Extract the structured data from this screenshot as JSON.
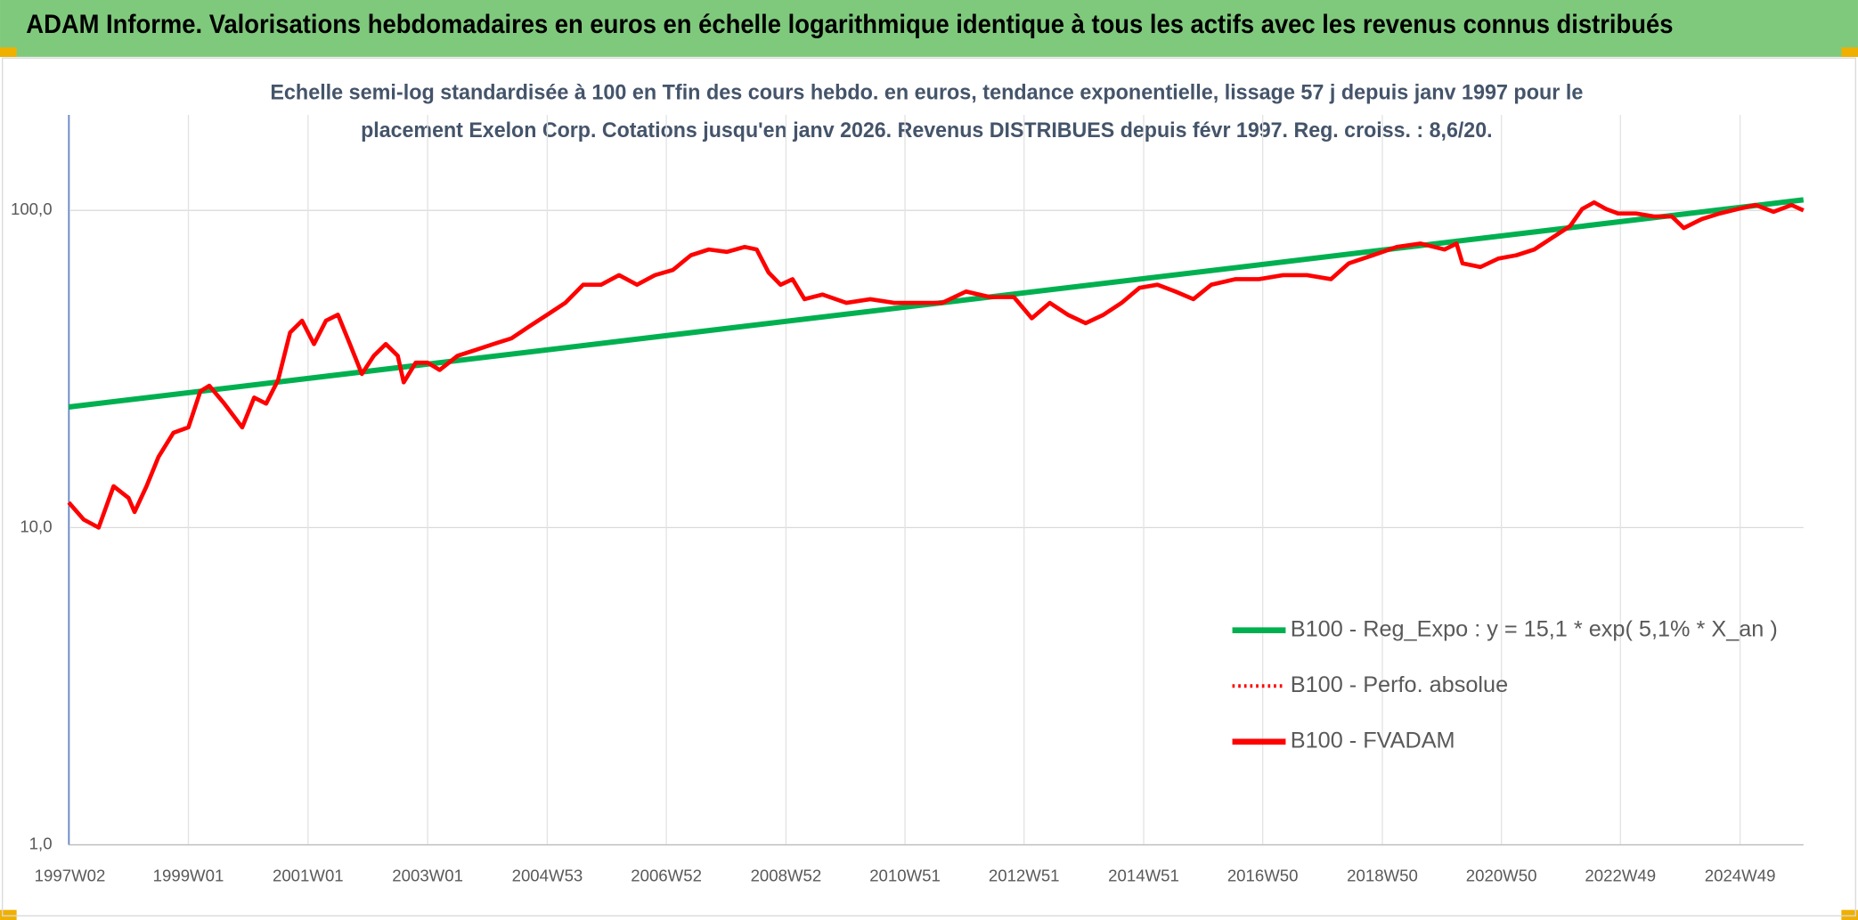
{
  "page_title": "ADAM Informe. Valorisations hebdomadaires en euros en échelle logarithmique identique à tous les actifs avec les revenus connus distribués",
  "chart_data": {
    "type": "line",
    "title": [
      "Echelle semi-log standardisée à 100 en Tfin des cours hebdo. en euros, tendance exponentielle, lissage 57 j depuis janv 1997 pour le",
      "placement Exelon Corp. Cotations jusqu'en janv 2026. Revenus DISTRIBUES depuis févr 1997. Reg. croiss. : 8,6/20."
    ],
    "log_y": true,
    "grid": true,
    "legend": "lower right",
    "xlim": [
      1997.0,
      2026.0
    ],
    "xticks": [
      {
        "value": 1997.02,
        "label": "1997W02"
      },
      {
        "value": 1999.0,
        "label": "1999W01"
      },
      {
        "value": 2001.0,
        "label": "2001W01"
      },
      {
        "value": 2003.0,
        "label": "2003W01"
      },
      {
        "value": 2005.0,
        "label": "2004W53"
      },
      {
        "value": 2006.99,
        "label": "2006W52"
      },
      {
        "value": 2008.99,
        "label": "2008W52"
      },
      {
        "value": 2010.98,
        "label": "2010W51"
      },
      {
        "value": 2012.97,
        "label": "2012W51"
      },
      {
        "value": 2014.97,
        "label": "2014W51"
      },
      {
        "value": 2016.96,
        "label": "2016W50"
      },
      {
        "value": 2018.96,
        "label": "2018W50"
      },
      {
        "value": 2020.95,
        "label": "2020W50"
      },
      {
        "value": 2022.94,
        "label": "2022W49"
      },
      {
        "value": 2024.94,
        "label": "2024W49"
      }
    ],
    "ylim": [
      1,
      200
    ],
    "yticks": [
      {
        "value": 1,
        "label": "1,0"
      },
      {
        "value": 10,
        "label": "10,0"
      },
      {
        "value": 100,
        "label": "100,0"
      }
    ],
    "series": [
      {
        "name": "B100 - Reg_Expo : y = 15,1 * exp( 5,1% *  X_an )",
        "color": "#00b050",
        "style": "solid",
        "x": [
          1997.0,
          2026.0
        ],
        "values": [
          24.0,
          108
        ]
      },
      {
        "name": "B100 - Perfo. absolue",
        "color": "#ff0000",
        "style": "dotted",
        "x": [],
        "values": []
      },
      {
        "name": "B100 - FVADAM",
        "color": "#ff0000",
        "style": "solid",
        "x": [
          1997.0,
          1997.25,
          1997.5,
          1997.75,
          1998.0,
          1998.1,
          1998.3,
          1998.5,
          1998.75,
          1999.0,
          1999.2,
          1999.35,
          1999.6,
          1999.9,
          2000.1,
          2000.3,
          2000.5,
          2000.7,
          2000.9,
          2001.1,
          2001.3,
          2001.5,
          2001.7,
          2001.9,
          2002.1,
          2002.3,
          2002.5,
          2002.6,
          2002.8,
          2003.0,
          2003.2,
          2003.5,
          2003.8,
          2004.1,
          2004.4,
          2004.7,
          2005.0,
          2005.3,
          2005.6,
          2005.9,
          2006.2,
          2006.5,
          2006.8,
          2007.1,
          2007.4,
          2007.7,
          2008.0,
          2008.3,
          2008.5,
          2008.7,
          2008.9,
          2009.1,
          2009.3,
          2009.6,
          2010.0,
          2010.4,
          2010.8,
          2011.2,
          2011.6,
          2012.0,
          2012.4,
          2012.8,
          2013.1,
          2013.4,
          2013.7,
          2014.0,
          2014.3,
          2014.6,
          2014.9,
          2015.2,
          2015.5,
          2015.8,
          2016.1,
          2016.5,
          2016.9,
          2017.3,
          2017.7,
          2018.1,
          2018.4,
          2018.8,
          2019.2,
          2019.6,
          2020.0,
          2020.2,
          2020.3,
          2020.6,
          2020.9,
          2021.2,
          2021.5,
          2021.8,
          2022.1,
          2022.3,
          2022.5,
          2022.7,
          2022.9,
          2023.2,
          2023.5,
          2023.8,
          2024.0,
          2024.3,
          2024.6,
          2024.9,
          2025.2,
          2025.5,
          2025.8,
          2026.0
        ],
        "values": [
          12.0,
          10.6,
          10.0,
          13.5,
          12.4,
          11.2,
          13.5,
          16.7,
          19.9,
          20.7,
          26.9,
          28.0,
          24.6,
          20.7,
          25.7,
          24.6,
          29.2,
          41.2,
          44.9,
          37.9,
          44.9,
          46.9,
          37.9,
          30.5,
          34.8,
          37.9,
          34.8,
          28.7,
          33.1,
          33.1,
          31.4,
          34.8,
          36.3,
          37.9,
          39.5,
          43.1,
          46.9,
          51.1,
          58.3,
          58.3,
          62.5,
          58.3,
          62.5,
          64.9,
          72.2,
          75.3,
          74.0,
          76.7,
          75.3,
          63.7,
          58.3,
          60.7,
          52.5,
          54.3,
          51.1,
          52.5,
          51.1,
          51.1,
          51.1,
          55.5,
          53.3,
          53.3,
          45.7,
          51.1,
          46.9,
          44.1,
          46.9,
          51.1,
          57.0,
          58.3,
          55.5,
          52.5,
          58.3,
          60.7,
          60.7,
          62.5,
          62.5,
          60.7,
          68.1,
          72.2,
          76.7,
          78.6,
          75.3,
          78.6,
          68.1,
          66.3,
          70.5,
          72.2,
          75.3,
          82.0,
          89.3,
          101,
          106,
          101,
          97.8,
          97.8,
          95.7,
          95.7,
          88.0,
          93.9,
          97.8,
          101,
          104,
          99.0,
          104,
          100
        ]
      }
    ]
  }
}
